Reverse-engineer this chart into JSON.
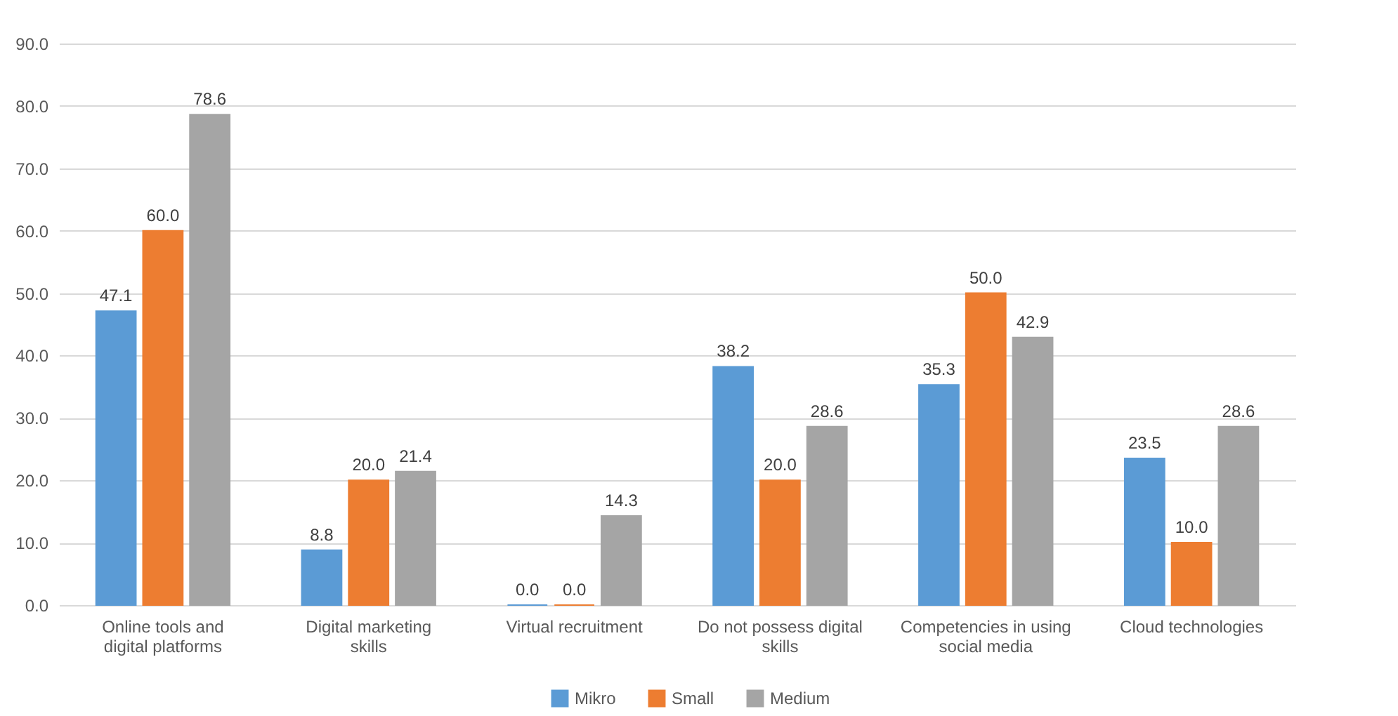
{
  "chart_data": {
    "type": "bar",
    "categories": [
      "Online tools and digital platforms",
      "Digital marketing skills",
      "Virtual recruitment",
      "Do not possess digital skills",
      "Competencies in using social media",
      "Cloud technologies"
    ],
    "series": [
      {
        "name": "Mikro",
        "color": "#5b9bd5",
        "values": [
          47.1,
          8.8,
          0.0,
          38.2,
          35.3,
          23.5
        ],
        "value_labels": [
          "47.1",
          "8.8",
          "0.0",
          "38.2",
          "35.3",
          "23.5"
        ]
      },
      {
        "name": "Small",
        "color": "#ed7d31",
        "values": [
          60.0,
          20.0,
          0.0,
          20.0,
          50.0,
          10.0
        ],
        "value_labels": [
          "60.0",
          "20.0",
          "0.0",
          "20.0",
          "50.0",
          "10.0"
        ]
      },
      {
        "name": "Medium",
        "color": "#a5a5a5",
        "values": [
          78.6,
          21.4,
          14.3,
          28.6,
          42.9,
          28.6
        ],
        "value_labels": [
          "78.6",
          "21.4",
          "14.3",
          "28.6",
          "42.9",
          "28.6"
        ]
      }
    ],
    "ylim": [
      0,
      90
    ],
    "yticks": [
      {
        "value": 0,
        "label": "0.0"
      },
      {
        "value": 10,
        "label": "10.0"
      },
      {
        "value": 20,
        "label": "20.0"
      },
      {
        "value": 30,
        "label": "30.0"
      },
      {
        "value": 40,
        "label": "40.0"
      },
      {
        "value": 50,
        "label": "50.0"
      },
      {
        "value": 60,
        "label": "60.0"
      },
      {
        "value": 70,
        "label": "70.0"
      },
      {
        "value": 80,
        "label": "80.0"
      },
      {
        "value": 90,
        "label": "90.0"
      }
    ],
    "grid": "y",
    "legend": "bottom"
  }
}
